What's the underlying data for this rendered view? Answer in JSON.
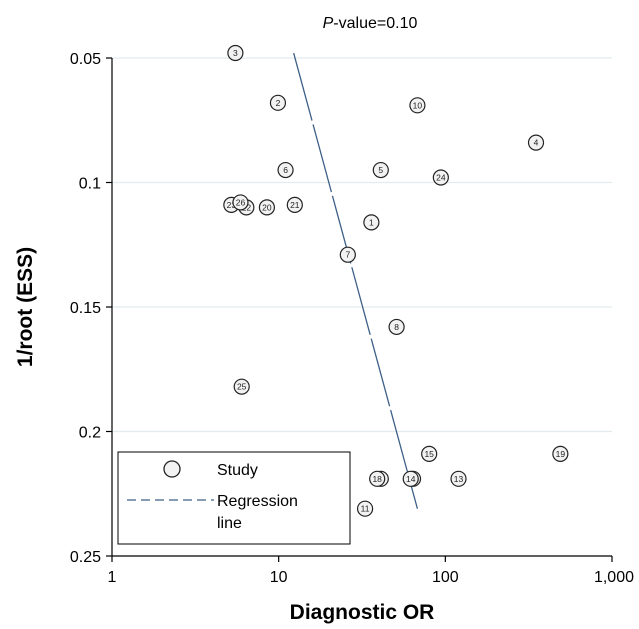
{
  "chart_data": {
    "type": "scatter",
    "title_prefix": "P",
    "title_suffix": "-value=0.10",
    "xlabel": "Diagnostic OR",
    "ylabel": "1/root (ESS)",
    "x_scale": "log",
    "xlim": [
      1,
      1000
    ],
    "ylim": [
      0.25,
      0.05
    ],
    "y_inverted": true,
    "x_ticks": [
      1,
      10,
      100,
      1000
    ],
    "x_tick_labels": [
      "1",
      "10",
      "100",
      "1,000"
    ],
    "y_ticks": [
      0.05,
      0.1,
      0.15,
      0.2,
      0.25
    ],
    "y_tick_labels": [
      "0.05",
      "0.1",
      "0.15",
      "0.2",
      "0.25"
    ],
    "grid": "horizontal",
    "legend_position": "bottom-left",
    "legend": [
      {
        "label": "Study",
        "marker": "circle"
      },
      {
        "label": "Regression line",
        "label_lines": [
          "Regression",
          "line"
        ],
        "marker": "dashed-line"
      }
    ],
    "colors": {
      "marker_fill": "#f2f2f2",
      "marker_stroke": "#222222",
      "regression": "#3d5f88",
      "grid": "#e2ecee"
    },
    "series": [
      {
        "name": "Study",
        "points": [
          {
            "label": "1",
            "x": 36,
            "y": 0.116
          },
          {
            "label": "2",
            "x": 9.9,
            "y": 0.068
          },
          {
            "label": "3",
            "x": 5.5,
            "y": 0.048
          },
          {
            "label": "4",
            "x": 350,
            "y": 0.084
          },
          {
            "label": "5",
            "x": 41,
            "y": 0.095
          },
          {
            "label": "6",
            "x": 11,
            "y": 0.095
          },
          {
            "label": "7",
            "x": 26,
            "y": 0.129
          },
          {
            "label": "8",
            "x": 51,
            "y": 0.158
          },
          {
            "label": "10",
            "x": 68,
            "y": 0.069
          },
          {
            "label": "11",
            "x": 33,
            "y": 0.231
          },
          {
            "label": "12",
            "x": 64,
            "y": 0.219
          },
          {
            "label": "13",
            "x": 120,
            "y": 0.219
          },
          {
            "label": "14",
            "x": 62,
            "y": 0.219
          },
          {
            "label": "15",
            "x": 80,
            "y": 0.209
          },
          {
            "label": "16",
            "x": 41,
            "y": 0.219
          },
          {
            "label": "18",
            "x": 39,
            "y": 0.219
          },
          {
            "label": "19",
            "x": 490,
            "y": 0.209
          },
          {
            "label": "20",
            "x": 8.5,
            "y": 0.11
          },
          {
            "label": "21",
            "x": 12.5,
            "y": 0.109
          },
          {
            "label": "22",
            "x": 6.4,
            "y": 0.11
          },
          {
            "label": "23",
            "x": 5.2,
            "y": 0.109
          },
          {
            "label": "24",
            "x": 94,
            "y": 0.098
          },
          {
            "label": "25",
            "x": 6.0,
            "y": 0.182
          },
          {
            "label": "26",
            "x": 5.9,
            "y": 0.108
          }
        ]
      }
    ],
    "regression_line": {
      "x": [
        12.3,
        68
      ],
      "y": [
        0.048,
        0.231
      ]
    }
  }
}
